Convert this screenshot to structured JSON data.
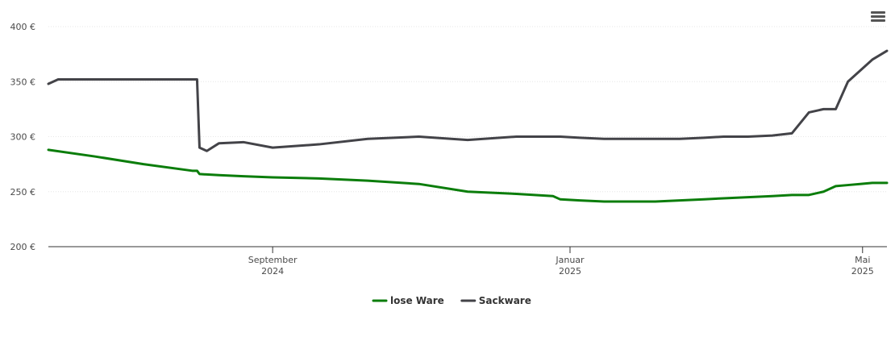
{
  "menu_icon": "hamburger-menu-icon",
  "chart_data": {
    "type": "line",
    "title": "",
    "xlabel": "",
    "ylabel": "",
    "ylim": [
      200,
      400
    ],
    "xlim": [
      "2024-06-01",
      "2025-05-11"
    ],
    "grid": "horizontal dotted",
    "legend_placement": "bottom-center",
    "y_ticks": [
      {
        "value": 200,
        "label": "200 €"
      },
      {
        "value": 250,
        "label": "250 €"
      },
      {
        "value": 300,
        "label": "300 €"
      },
      {
        "value": 350,
        "label": "350 €"
      },
      {
        "value": 400,
        "label": "400 €"
      }
    ],
    "x_ticks": [
      {
        "date": "2024-09-01",
        "month": "September",
        "year": "2024"
      },
      {
        "date": "2025-01-01",
        "month": "Januar",
        "year": "2025"
      },
      {
        "date": "2025-05-01",
        "month": "Mai",
        "year": "2025"
      }
    ],
    "series": [
      {
        "name": "lose Ware",
        "color": "#0b7d0b",
        "points": [
          [
            "2024-06-01",
            288
          ],
          [
            "2024-06-20",
            282
          ],
          [
            "2024-07-10",
            275
          ],
          [
            "2024-07-30",
            269
          ],
          [
            "2024-08-01",
            269
          ],
          [
            "2024-08-02",
            266
          ],
          [
            "2024-08-10",
            265
          ],
          [
            "2024-08-20",
            264
          ],
          [
            "2024-09-01",
            263
          ],
          [
            "2024-09-20",
            262
          ],
          [
            "2024-10-10",
            260
          ],
          [
            "2024-10-31",
            257
          ],
          [
            "2024-11-20",
            250
          ],
          [
            "2024-12-10",
            248
          ],
          [
            "2024-12-25",
            246
          ],
          [
            "2024-12-28",
            243
          ],
          [
            "2025-01-05",
            242
          ],
          [
            "2025-01-15",
            241
          ],
          [
            "2025-01-25",
            241
          ],
          [
            "2025-02-05",
            241
          ],
          [
            "2025-02-15",
            242
          ],
          [
            "2025-02-25",
            243
          ],
          [
            "2025-03-05",
            244
          ],
          [
            "2025-03-15",
            245
          ],
          [
            "2025-03-25",
            246
          ],
          [
            "2025-04-02",
            247
          ],
          [
            "2025-04-09",
            247
          ],
          [
            "2025-04-15",
            250
          ],
          [
            "2025-04-20",
            255
          ],
          [
            "2025-04-25",
            256
          ],
          [
            "2025-04-30",
            257
          ],
          [
            "2025-05-05",
            258
          ],
          [
            "2025-05-11",
            258
          ]
        ]
      },
      {
        "name": "Sackware",
        "color": "#434348",
        "points": [
          [
            "2024-06-01",
            348
          ],
          [
            "2024-06-05",
            352
          ],
          [
            "2024-06-20",
            352
          ],
          [
            "2024-07-10",
            352
          ],
          [
            "2024-07-30",
            352
          ],
          [
            "2024-08-01",
            352
          ],
          [
            "2024-08-02",
            290
          ],
          [
            "2024-08-05",
            287
          ],
          [
            "2024-08-10",
            294
          ],
          [
            "2024-08-20",
            295
          ],
          [
            "2024-09-01",
            290
          ],
          [
            "2024-09-20",
            293
          ],
          [
            "2024-10-10",
            298
          ],
          [
            "2024-10-31",
            300
          ],
          [
            "2024-11-20",
            297
          ],
          [
            "2024-12-10",
            300
          ],
          [
            "2024-12-25",
            300
          ],
          [
            "2024-12-28",
            300
          ],
          [
            "2025-01-05",
            299
          ],
          [
            "2025-01-15",
            298
          ],
          [
            "2025-01-25",
            298
          ],
          [
            "2025-02-05",
            298
          ],
          [
            "2025-02-15",
            298
          ],
          [
            "2025-02-25",
            299
          ],
          [
            "2025-03-05",
            300
          ],
          [
            "2025-03-15",
            300
          ],
          [
            "2025-03-25",
            301
          ],
          [
            "2025-04-02",
            303
          ],
          [
            "2025-04-09",
            322
          ],
          [
            "2025-04-15",
            325
          ],
          [
            "2025-04-20",
            325
          ],
          [
            "2025-04-25",
            350
          ],
          [
            "2025-04-30",
            360
          ],
          [
            "2025-05-05",
            370
          ],
          [
            "2025-05-11",
            378
          ]
        ]
      }
    ]
  }
}
